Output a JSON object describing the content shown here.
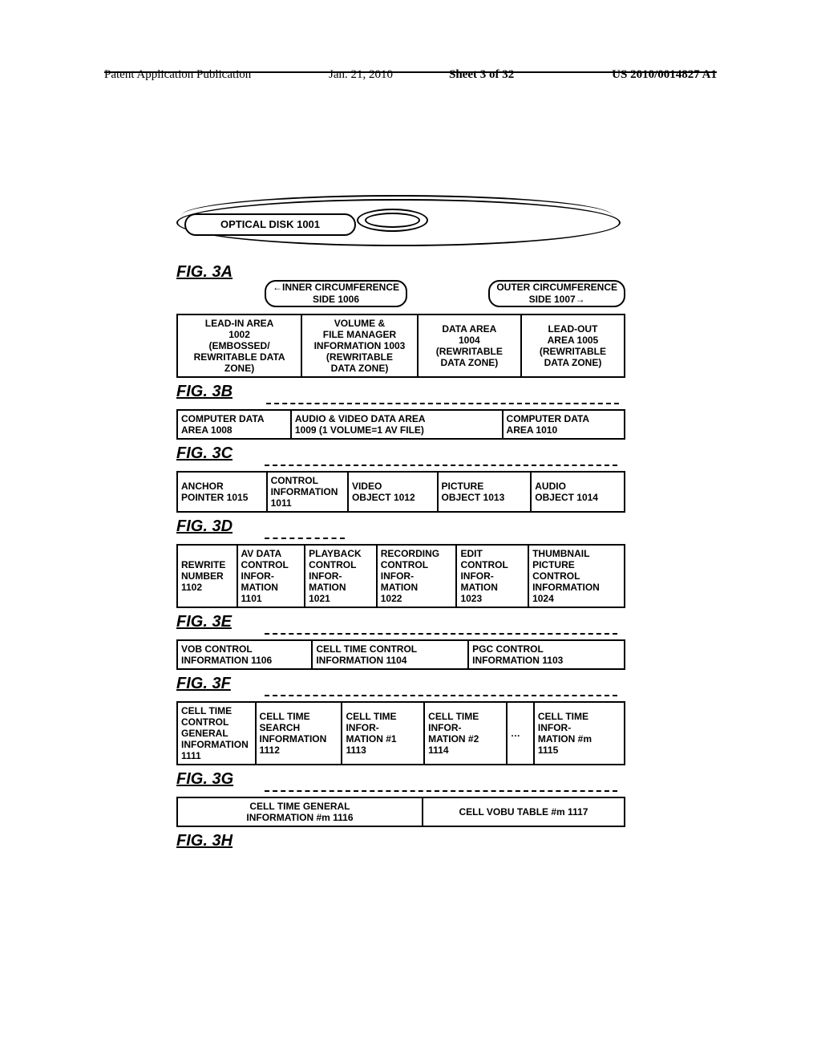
{
  "header": {
    "left": "Patent Application Publication",
    "date": "Jan. 21, 2010",
    "sheet": "Sheet 3 of 32",
    "pubno": "US 2010/0014827 A1"
  },
  "disk_label": "OPTICAL DISK 1001",
  "labels": {
    "fig3a": "FIG. 3A",
    "fig3b": "FIG. 3B",
    "fig3c": "FIG. 3C",
    "fig3d": "FIG. 3D",
    "fig3e": "FIG. 3E",
    "fig3f": "FIG. 3F",
    "fig3g": "FIG. 3G",
    "fig3h": "FIG. 3H"
  },
  "circ": {
    "inner": "←INNER CIRCUMFERENCE\nSIDE 1006",
    "outer": "OUTER CIRCUMFERENCE\nSIDE 1007→"
  },
  "fig3a_cells": [
    "LEAD-IN AREA\n1002\n(EMBOSSED/\nREWRITABLE DATA ZONE)",
    "VOLUME &\nFILE MANAGER\nINFORMATION 1003\n(REWRITABLE\nDATA ZONE)",
    "DATA AREA\n1004\n(REWRITABLE\nDATA ZONE)",
    "LEAD-OUT\nAREA 1005\n(REWRITABLE\nDATA ZONE)"
  ],
  "fig3b_cells": [
    "COMPUTER DATA\nAREA 1008",
    "AUDIO & VIDEO DATA AREA\n1009 (1 VOLUME=1 AV FILE)",
    "COMPUTER DATA\nAREA 1010"
  ],
  "fig3c_cells": [
    "ANCHOR\nPOINTER 1015",
    "CONTROL\nINFORMATION\n1011",
    "VIDEO\nOBJECT 1012",
    "PICTURE\nOBJECT 1013",
    "AUDIO\nOBJECT 1014"
  ],
  "fig3d_cells": [
    "REWRITE\nNUMBER\n1102",
    "AV DATA\nCONTROL\nINFOR-\nMATION\n1101",
    "PLAYBACK\nCONTROL\nINFOR-\nMATION\n1021",
    "RECORDING\nCONTROL\nINFOR-\nMATION\n1022",
    "EDIT\nCONTROL\nINFOR-\nMATION\n1023",
    "THUMBNAIL\nPICTURE\nCONTROL\nINFORMATION\n1024"
  ],
  "fig3e_cells": [
    "VOB CONTROL\nINFORMATION 1106",
    "CELL TIME CONTROL\nINFORMATION 1104",
    "PGC CONTROL\nINFORMATION 1103"
  ],
  "fig3f_cells": [
    "CELL TIME\nCONTROL\nGENERAL\nINFORMATION\n1111",
    "CELL TIME\nSEARCH\nINFORMATION\n1112",
    "CELL TIME\nINFOR-\nMATION #1\n1113",
    "CELL TIME\nINFOR-\nMATION #2\n1114",
    "CELL TIME\nINFOR-\nMATION #m\n1115"
  ],
  "fig3g_cells": [
    "CELL TIME GENERAL\nINFORMATION #m 1116",
    "CELL VOBU TABLE #m 1117"
  ],
  "colors": {
    "line": "#000000",
    "bg": "#ffffff"
  }
}
